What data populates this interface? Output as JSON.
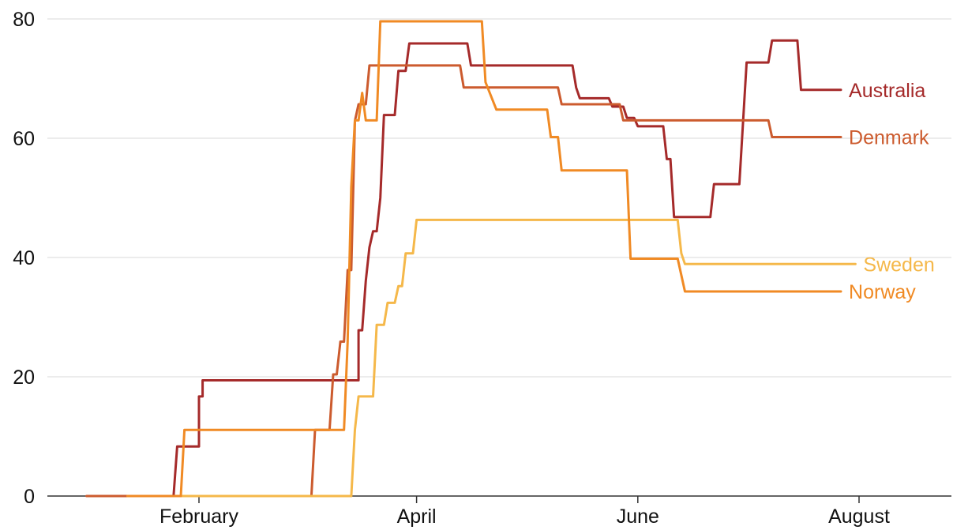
{
  "chart_data": {
    "type": "line",
    "title": "",
    "xlabel": "",
    "ylabel": "",
    "ylim": [
      0,
      80
    ],
    "yticks": [
      "0",
      "20",
      "40",
      "60",
      "80"
    ],
    "xticks": [
      "February",
      "April",
      "June",
      "August"
    ],
    "xtick_dates": [
      "2020-02-01",
      "2020-04-01",
      "2020-06-01",
      "2020-08-01"
    ],
    "xlim": [
      "2020-01-01",
      "2020-08-31"
    ],
    "grid": true,
    "legend": "inline labels at line ends",
    "series": [
      {
        "name": "Australia",
        "color": "#a52a2a",
        "points": [
          [
            "2020-01-25",
            0
          ],
          [
            "2020-01-26",
            8.3
          ],
          [
            "2020-02-01",
            8.3
          ],
          [
            "2020-02-01",
            16.7
          ],
          [
            "2020-02-02",
            16.7
          ],
          [
            "2020-02-02",
            19.4
          ],
          [
            "2020-03-16",
            19.4
          ],
          [
            "2020-03-16",
            27.8
          ],
          [
            "2020-03-17",
            27.8
          ],
          [
            "2020-03-18",
            36.1
          ],
          [
            "2020-03-19",
            41.7
          ],
          [
            "2020-03-20",
            44.4
          ],
          [
            "2020-03-21",
            44.4
          ],
          [
            "2020-03-22",
            50.0
          ],
          [
            "2020-03-23",
            63.9
          ],
          [
            "2020-03-26",
            63.9
          ],
          [
            "2020-03-27",
            71.3
          ],
          [
            "2020-03-29",
            71.3
          ],
          [
            "2020-03-30",
            75.9
          ],
          [
            "2020-04-15",
            75.9
          ],
          [
            "2020-04-16",
            72.2
          ],
          [
            "2020-05-14",
            72.2
          ],
          [
            "2020-05-15",
            68.5
          ],
          [
            "2020-05-16",
            66.7
          ],
          [
            "2020-05-24",
            66.7
          ],
          [
            "2020-05-25",
            65.3
          ],
          [
            "2020-05-28",
            65.3
          ],
          [
            "2020-05-29",
            63.4
          ],
          [
            "2020-05-31",
            63.4
          ],
          [
            "2020-06-01",
            62.0
          ],
          [
            "2020-06-08",
            62.0
          ],
          [
            "2020-06-09",
            56.5
          ],
          [
            "2020-06-10",
            56.5
          ],
          [
            "2020-06-11",
            46.8
          ],
          [
            "2020-06-21",
            46.8
          ],
          [
            "2020-06-22",
            52.3
          ],
          [
            "2020-06-29",
            52.3
          ],
          [
            "2020-07-01",
            72.7
          ],
          [
            "2020-07-07",
            72.7
          ],
          [
            "2020-07-08",
            76.4
          ],
          [
            "2020-07-15",
            76.4
          ],
          [
            "2020-07-16",
            68.1
          ],
          [
            "2020-07-27",
            68.1
          ]
        ]
      },
      {
        "name": "Denmark",
        "color": "#cc5b2e",
        "points": [
          [
            "2020-01-01",
            0
          ],
          [
            "2020-03-03",
            0
          ],
          [
            "2020-03-04",
            11.1
          ],
          [
            "2020-03-08",
            11.1
          ],
          [
            "2020-03-09",
            20.4
          ],
          [
            "2020-03-10",
            20.4
          ],
          [
            "2020-03-11",
            25.9
          ],
          [
            "2020-03-12",
            25.9
          ],
          [
            "2020-03-13",
            37.9
          ],
          [
            "2020-03-14",
            37.9
          ],
          [
            "2020-03-15",
            62.9
          ],
          [
            "2020-03-16",
            65.7
          ],
          [
            "2020-03-18",
            65.7
          ],
          [
            "2020-03-19",
            72.2
          ],
          [
            "2020-04-13",
            72.2
          ],
          [
            "2020-04-14",
            68.5
          ],
          [
            "2020-05-10",
            68.5
          ],
          [
            "2020-05-11",
            65.7
          ],
          [
            "2020-05-27",
            65.7
          ],
          [
            "2020-05-28",
            63.0
          ],
          [
            "2020-07-07",
            63.0
          ],
          [
            "2020-07-08",
            60.2
          ],
          [
            "2020-07-27",
            60.2
          ]
        ]
      },
      {
        "name": "Sweden",
        "color": "#f5b84a",
        "points": [
          [
            "2020-03-14",
            0
          ],
          [
            "2020-03-15",
            11.1
          ],
          [
            "2020-03-16",
            16.7
          ],
          [
            "2020-03-20",
            16.7
          ],
          [
            "2020-03-21",
            28.7
          ],
          [
            "2020-03-23",
            28.7
          ],
          [
            "2020-03-24",
            32.4
          ],
          [
            "2020-03-26",
            32.4
          ],
          [
            "2020-03-27",
            35.2
          ],
          [
            "2020-03-28",
            35.2
          ],
          [
            "2020-03-29",
            40.7
          ],
          [
            "2020-03-31",
            40.7
          ],
          [
            "2020-04-01",
            46.3
          ],
          [
            "2020-06-12",
            46.3
          ],
          [
            "2020-06-13",
            40.7
          ],
          [
            "2020-06-14",
            38.9
          ],
          [
            "2020-07-31",
            38.9
          ]
        ]
      },
      {
        "name": "Norway",
        "color": "#f08a24",
        "points": [
          [
            "2020-01-27",
            0
          ],
          [
            "2020-01-28",
            11.1
          ],
          [
            "2020-03-12",
            11.1
          ],
          [
            "2020-03-13",
            25.9
          ],
          [
            "2020-03-14",
            51.9
          ],
          [
            "2020-03-15",
            63.0
          ],
          [
            "2020-03-16",
            63.0
          ],
          [
            "2020-03-17",
            67.6
          ],
          [
            "2020-03-18",
            63.0
          ],
          [
            "2020-03-21",
            63.0
          ],
          [
            "2020-03-22",
            79.6
          ],
          [
            "2020-04-19",
            79.6
          ],
          [
            "2020-04-20",
            69.4
          ],
          [
            "2020-04-23",
            64.8
          ],
          [
            "2020-05-07",
            64.8
          ],
          [
            "2020-05-08",
            60.2
          ],
          [
            "2020-05-10",
            60.2
          ],
          [
            "2020-05-11",
            54.6
          ],
          [
            "2020-05-29",
            54.6
          ],
          [
            "2020-05-30",
            39.8
          ],
          [
            "2020-06-12",
            39.8
          ],
          [
            "2020-06-14",
            34.3
          ],
          [
            "2020-07-27",
            34.3
          ]
        ]
      }
    ]
  }
}
